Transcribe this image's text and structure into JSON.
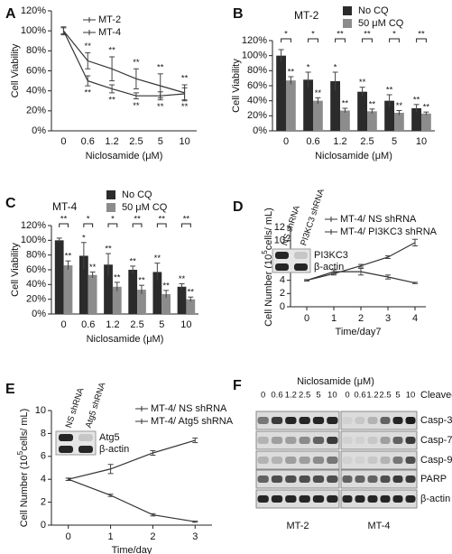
{
  "chart_data": [
    {
      "panel": "A",
      "type": "line",
      "categories": [
        "0",
        "0.6",
        "1.2",
        "2.5",
        "5",
        "10"
      ],
      "xlabel": "Niclosamide (μM)",
      "ylabel": "Cell Viability",
      "ylim": [
        0,
        120
      ],
      "yticks": [
        {
          "value": 0,
          "label": "0%"
        },
        {
          "value": 20,
          "label": "20%"
        },
        {
          "value": 40,
          "label": "40%"
        },
        {
          "value": 60,
          "label": "60%"
        },
        {
          "value": 80,
          "label": "80%"
        },
        {
          "value": 100,
          "label": "100%"
        },
        {
          "value": 120,
          "label": "120%"
        }
      ],
      "series": [
        {
          "name": "MT-2",
          "color": "#333333",
          "values": [
            100,
            70,
            62,
            52,
            45,
            38
          ],
          "errors": [
            4,
            8,
            12,
            10,
            12,
            8
          ],
          "significance": [
            null,
            "**",
            "**",
            "**",
            "**",
            "**"
          ]
        },
        {
          "name": "MT-4",
          "color": "#333333",
          "values": [
            100,
            50,
            42,
            35,
            35,
            37
          ],
          "errors": [
            3,
            5,
            4,
            3,
            4,
            6
          ],
          "significance": [
            null,
            "**",
            "**",
            "**",
            "**",
            "**"
          ]
        }
      ]
    },
    {
      "panel": "B",
      "type": "bar",
      "title": "MT-2",
      "categories": [
        "0",
        "0.6",
        "1.2",
        "2.5",
        "5",
        "10"
      ],
      "xlabel": "Niclosamide (μM)",
      "ylabel": "Cell Viability",
      "ylim": [
        0,
        120
      ],
      "yticks": [
        {
          "value": 0,
          "label": "0%"
        },
        {
          "value": 20,
          "label": "20%"
        },
        {
          "value": 40,
          "label": "40%"
        },
        {
          "value": 60,
          "label": "60%"
        },
        {
          "value": 80,
          "label": "80%"
        },
        {
          "value": 100,
          "label": "100%"
        },
        {
          "value": 120,
          "label": "120%"
        }
      ],
      "comparisons": [
        "*",
        "*",
        "**",
        "**",
        "*",
        "**"
      ],
      "series": [
        {
          "name": "No CQ",
          "color": "#2b2b2b",
          "values": [
            100,
            68,
            66,
            52,
            40,
            30
          ],
          "errors": [
            8,
            10,
            12,
            6,
            8,
            5
          ],
          "significance": [
            null,
            "*",
            "*",
            "**",
            "**",
            "**"
          ]
        },
        {
          "name": "50 μM CQ",
          "color": "#8c8c8c",
          "values": [
            67,
            40,
            27,
            26,
            24,
            23
          ],
          "errors": [
            5,
            4,
            3,
            3,
            3,
            2
          ],
          "significance": [
            "**",
            "**",
            "**",
            "**",
            "**",
            "**"
          ]
        }
      ]
    },
    {
      "panel": "C",
      "type": "bar",
      "title": "MT-4",
      "categories": [
        "0",
        "0.6",
        "1.2",
        "2.5",
        "5",
        "10"
      ],
      "xlabel": "Niclosamide (μM)",
      "ylabel": "Cell Viability",
      "ylim": [
        0,
        120
      ],
      "yticks": [
        {
          "value": 0,
          "label": "0%"
        },
        {
          "value": 20,
          "label": "20%"
        },
        {
          "value": 40,
          "label": "40%"
        },
        {
          "value": 60,
          "label": "60%"
        },
        {
          "value": 80,
          "label": "80%"
        },
        {
          "value": 100,
          "label": "100%"
        },
        {
          "value": 120,
          "label": "120%"
        }
      ],
      "comparisons": [
        "**",
        "*",
        "*",
        "**",
        "**",
        "**"
      ],
      "series": [
        {
          "name": "No CQ",
          "color": "#2b2b2b",
          "values": [
            100,
            79,
            67,
            60,
            57,
            37
          ],
          "errors": [
            3,
            18,
            15,
            5,
            12,
            4
          ],
          "significance": [
            null,
            "*",
            "**",
            "**",
            "**",
            "**"
          ]
        },
        {
          "name": "50 μM CQ",
          "color": "#8c8c8c",
          "values": [
            66,
            53,
            37,
            33,
            27,
            20
          ],
          "errors": [
            6,
            4,
            6,
            6,
            5,
            3
          ],
          "significance": [
            "**",
            "**",
            "**",
            "**",
            "**",
            "**"
          ]
        }
      ]
    },
    {
      "panel": "D",
      "type": "line",
      "x": [
        0,
        1,
        2,
        3,
        4
      ],
      "xlim": [
        -0.6,
        4.4
      ],
      "xticks": [
        0,
        1,
        2,
        3,
        4
      ],
      "xlabel": "Time/day7",
      "ylabel": {
        "pre": "Cell Number (10",
        "sup": "5",
        "post": "cells/ mL)"
      },
      "ylim": [
        0,
        12
      ],
      "yticks": [
        0,
        2,
        4,
        6,
        8,
        10,
        12
      ],
      "inset": {
        "lanes": [
          "NS shRNA",
          "PI3KC3 shRNA"
        ],
        "bands": [
          "PI3KC3",
          "β-actin"
        ]
      },
      "series": [
        {
          "name": "MT-4/ NS shRNA",
          "color": "#333333",
          "values": [
            4,
            5,
            6.2,
            7.5,
            9.7
          ],
          "errors": [
            0.1,
            0.2,
            0.2,
            0.2,
            0.5
          ]
        },
        {
          "name": "MT-4/ PI3KC3 shRNA",
          "color": "#333333",
          "values": [
            4,
            5.3,
            5.3,
            4.5,
            3.6
          ],
          "errors": [
            0.1,
            0.3,
            0.5,
            0.3,
            0.1
          ]
        }
      ]
    },
    {
      "panel": "E",
      "type": "line",
      "x": [
        0,
        1,
        2,
        3
      ],
      "xlim": [
        -0.4,
        3.4
      ],
      "xticks": [
        0,
        1,
        2,
        3
      ],
      "xlabel": "Time/day",
      "ylabel": {
        "pre": "Cell Number (10",
        "sup": "5",
        "post": "cells/ mL)"
      },
      "ylim": [
        0,
        10
      ],
      "yticks": [
        0,
        2,
        4,
        6,
        8,
        10
      ],
      "inset": {
        "lanes": [
          "NS shRNA",
          "Atg5 shRNA"
        ],
        "bands": [
          "Atg5",
          "β-actin"
        ]
      },
      "series": [
        {
          "name": "MT-4/ NS shRNA",
          "color": "#333333",
          "values": [
            4,
            4.9,
            6.3,
            7.4
          ],
          "errors": [
            0.1,
            0.4,
            0.2,
            0.2
          ]
        },
        {
          "name": "MT-4/ Atg5 shRNA",
          "color": "#333333",
          "values": [
            4,
            2.6,
            0.9,
            0.3
          ],
          "errors": [
            0.1,
            0.1,
            0.1,
            0.05
          ]
        }
      ]
    }
  ],
  "blot": {
    "panel": "F",
    "title": "Niclosamide (μM)",
    "lanes": [
      "0",
      "0.6",
      "1.2",
      "2.5",
      "5",
      "10"
    ],
    "cleaved_label": "Cleaved",
    "groups": [
      "MT-2",
      "MT-4"
    ],
    "proteins": [
      "Casp-3",
      "Casp-7",
      "Casp-9",
      "PARP",
      "β-actin"
    ]
  }
}
